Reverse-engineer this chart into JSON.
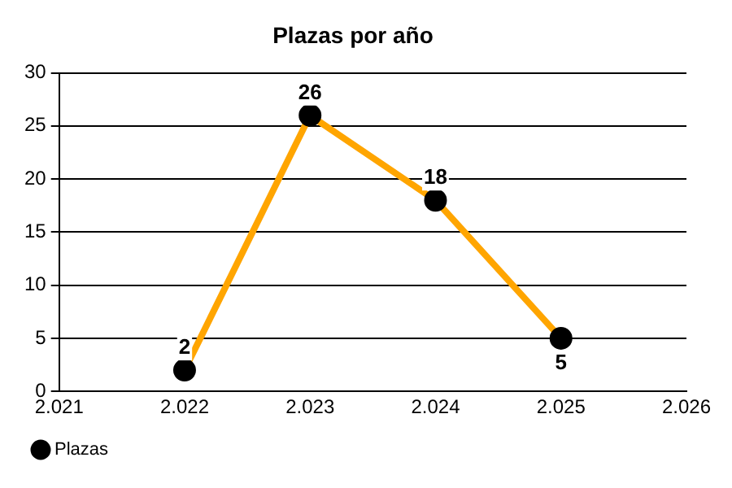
{
  "chart_data": {
    "type": "line",
    "title": "Plazas por año",
    "x": [
      2022,
      2023,
      2024,
      2025
    ],
    "series": [
      {
        "name": "Plazas",
        "color": "#ffa500",
        "values": [
          2,
          26,
          18,
          5
        ]
      }
    ],
    "xlim": [
      2021,
      2026
    ],
    "xticks": [
      {
        "value": 2021,
        "label": "2.021"
      },
      {
        "value": 2022,
        "label": "2.022"
      },
      {
        "value": 2023,
        "label": "2.023"
      },
      {
        "value": 2024,
        "label": "2.024"
      },
      {
        "value": 2025,
        "label": "2.025"
      },
      {
        "value": 2026,
        "label": "2.026"
      }
    ],
    "ylim": [
      0,
      30
    ],
    "yticks": [
      0,
      5,
      10,
      15,
      20,
      25,
      30
    ],
    "grid": "y",
    "legend": "bottom left",
    "marker": "circle",
    "line_style": "solid",
    "data_labels": true
  }
}
